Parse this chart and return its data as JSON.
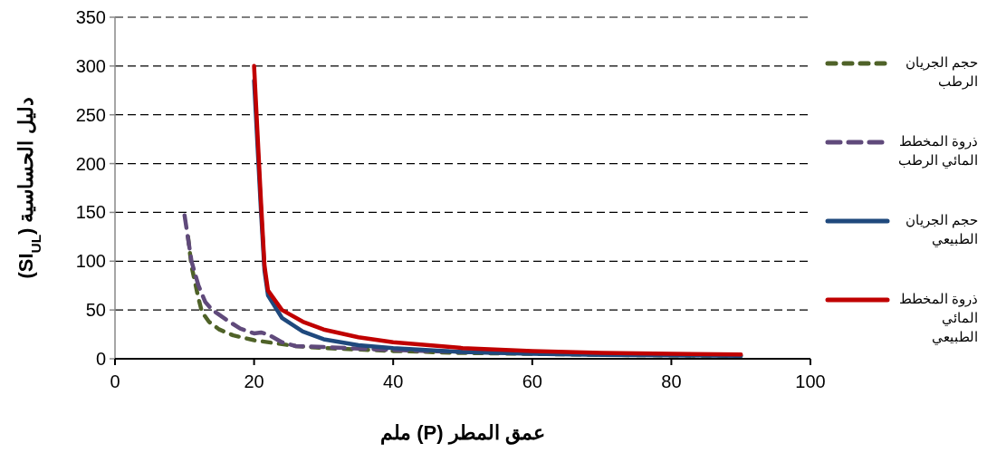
{
  "chart_data": {
    "type": "line",
    "xlabel": "عمق المطر (P) ملم",
    "ylabel": "دليل الحساسية (SI$_{UL}$)",
    "xlim": [
      0,
      100
    ],
    "xticks": [
      0,
      20,
      40,
      60,
      80,
      100
    ],
    "ylim": [
      0,
      350
    ],
    "yticks": [
      0,
      50,
      100,
      150,
      200,
      250,
      300,
      350
    ],
    "grid": "y",
    "legend": "right",
    "marker": "none",
    "series": [
      {
        "name": "حجم الجريان الرطب",
        "color": "#4f6228",
        "line_style": "dashed",
        "x": [
          10.5,
          11,
          12,
          12.5,
          13.5,
          15,
          17,
          20,
          23,
          26,
          30,
          40,
          50,
          60,
          70,
          80,
          90
        ],
        "values": [
          125,
          95,
          62,
          48,
          38,
          30,
          24,
          19,
          16,
          13,
          11,
          8,
          6,
          5,
          4,
          3.5,
          3
        ]
      },
      {
        "name": "ذروة المخطط المائي الرطب",
        "color": "#604a7b",
        "line_style": "dashed",
        "x": [
          10,
          11,
          12,
          13,
          14,
          16,
          18,
          20,
          21,
          22,
          24,
          26,
          30,
          40,
          50,
          60,
          70,
          80,
          90
        ],
        "values": [
          147,
          100,
          75,
          58,
          50,
          40,
          31,
          26,
          27,
          25,
          17,
          13,
          12,
          9,
          7,
          6,
          5,
          4,
          3.5
        ]
      },
      {
        "name": "حجم الجريان الطبيعي",
        "color": "#1f497d",
        "line_style": "solid",
        "x": [
          20,
          21,
          21.5,
          22,
          24,
          27,
          30,
          35,
          40,
          50,
          60,
          70,
          80,
          90
        ],
        "values": [
          285,
          150,
          90,
          65,
          42,
          28,
          20,
          14,
          11,
          7,
          5,
          4,
          3.5,
          3
        ]
      },
      {
        "name": "ذروة المخطط المائي الطبيعي",
        "color": "#c00000",
        "line_style": "solid",
        "x": [
          20,
          21,
          21.5,
          22,
          24,
          27,
          30,
          35,
          40,
          50,
          60,
          70,
          80,
          90
        ],
        "values": [
          300,
          160,
          95,
          70,
          50,
          38,
          30,
          22,
          17,
          11,
          8,
          6,
          5,
          4.5
        ]
      }
    ]
  }
}
